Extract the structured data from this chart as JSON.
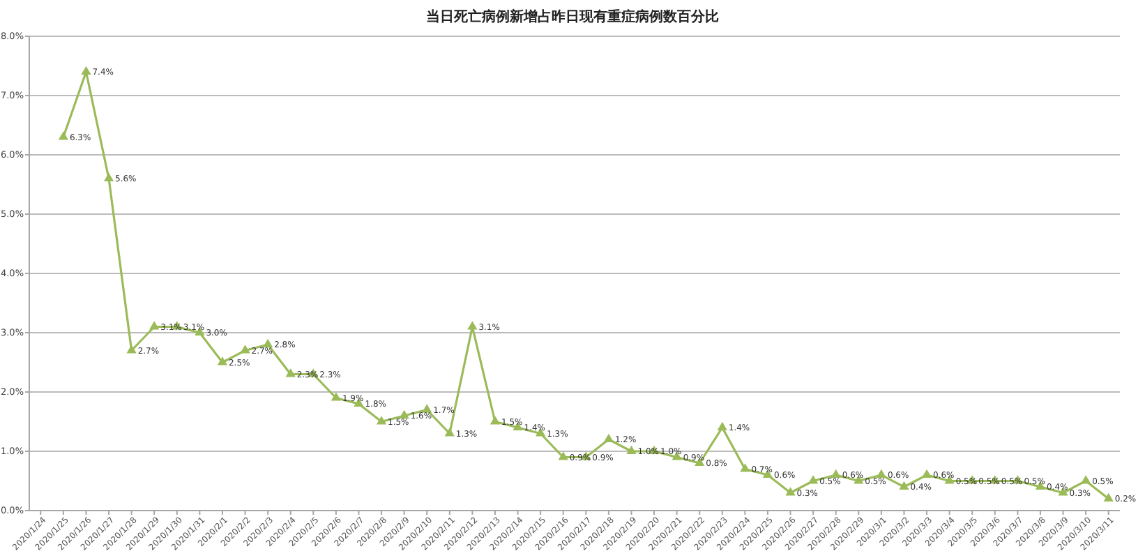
{
  "chart_data": {
    "type": "line",
    "title": "当日死亡病例新增占昨日现有重症病例数百分比",
    "categories": [
      "2020/1/24",
      "2020/1/25",
      "2020/1/26",
      "2020/1/27",
      "2020/1/28",
      "2020/1/29",
      "2020/1/30",
      "2020/1/31",
      "2020/2/1",
      "2020/2/2",
      "2020/2/3",
      "2020/2/4",
      "2020/2/5",
      "2020/2/6",
      "2020/2/7",
      "2020/2/8",
      "2020/2/9",
      "2020/2/10",
      "2020/2/11",
      "2020/2/12",
      "2020/2/13",
      "2020/2/14",
      "2020/2/15",
      "2020/2/16",
      "2020/2/17",
      "2020/2/18",
      "2020/2/19",
      "2020/2/20",
      "2020/2/21",
      "2020/2/22",
      "2020/2/23",
      "2020/2/24",
      "2020/2/25",
      "2020/2/26",
      "2020/2/27",
      "2020/2/28",
      "2020/2/29",
      "2020/3/1",
      "2020/3/2",
      "2020/3/3",
      "2020/3/4",
      "2020/3/5",
      "2020/3/6",
      "2020/3/7",
      "2020/3/8",
      "2020/3/9",
      "2020/3/10",
      "2020/3/11"
    ],
    "series": [
      {
        "color": "#9bbb59",
        "values": [
          null,
          6.3,
          7.4,
          5.6,
          2.7,
          3.1,
          3.1,
          3.0,
          2.5,
          2.7,
          2.8,
          2.3,
          2.3,
          1.9,
          1.8,
          1.5,
          1.6,
          1.7,
          1.3,
          3.1,
          1.5,
          1.4,
          1.3,
          0.9,
          0.9,
          1.2,
          1.0,
          1.0,
          0.9,
          0.8,
          1.4,
          0.7,
          0.6,
          0.3,
          0.5,
          0.6,
          0.5,
          0.6,
          0.4,
          0.6,
          0.5,
          0.5,
          0.5,
          0.5,
          0.4,
          0.3,
          0.5,
          0.2
        ],
        "value_labels": [
          null,
          "6.3%",
          "7.4%",
          "5.6%",
          "2.7%",
          "3.1%",
          "3.1%",
          "3.0%",
          "2.5%",
          "2.7%",
          "2.8%",
          "2.3%",
          "2.3%",
          "1.9%",
          "1.8%",
          "1.5%",
          "1.6%",
          "1.7%",
          "1.3%",
          "3.1%",
          "1.5%",
          "1.4%",
          "1.3%",
          "0.9%",
          "0.9%",
          "1.2%",
          "1.0%",
          "1.0%",
          "0.9%",
          "0.8%",
          "1.4%",
          "0.7%",
          "0.6%",
          "0.3%",
          "0.5%",
          "0.6%",
          "0.5%",
          "0.6%",
          "0.4%",
          "0.6%",
          "0.5%",
          "0.5%",
          "0.5%",
          "0.5%",
          "0.4%",
          "0.3%",
          "0.5%",
          "0.2%"
        ]
      }
    ],
    "ylim": [
      0,
      8
    ],
    "yticks": [
      {
        "value": 0,
        "label": "0.0%"
      },
      {
        "value": 1,
        "label": "1.0%"
      },
      {
        "value": 2,
        "label": "2.0%"
      },
      {
        "value": 3,
        "label": "3.0%"
      },
      {
        "value": 4,
        "label": "4.0%"
      },
      {
        "value": 5,
        "label": "5.0%"
      },
      {
        "value": 6,
        "label": "6.0%"
      },
      {
        "value": 7,
        "label": "7.0%"
      },
      {
        "value": 8,
        "label": "8.0%"
      }
    ],
    "grid": "y",
    "marker": "triangle",
    "line_style": "solid"
  }
}
